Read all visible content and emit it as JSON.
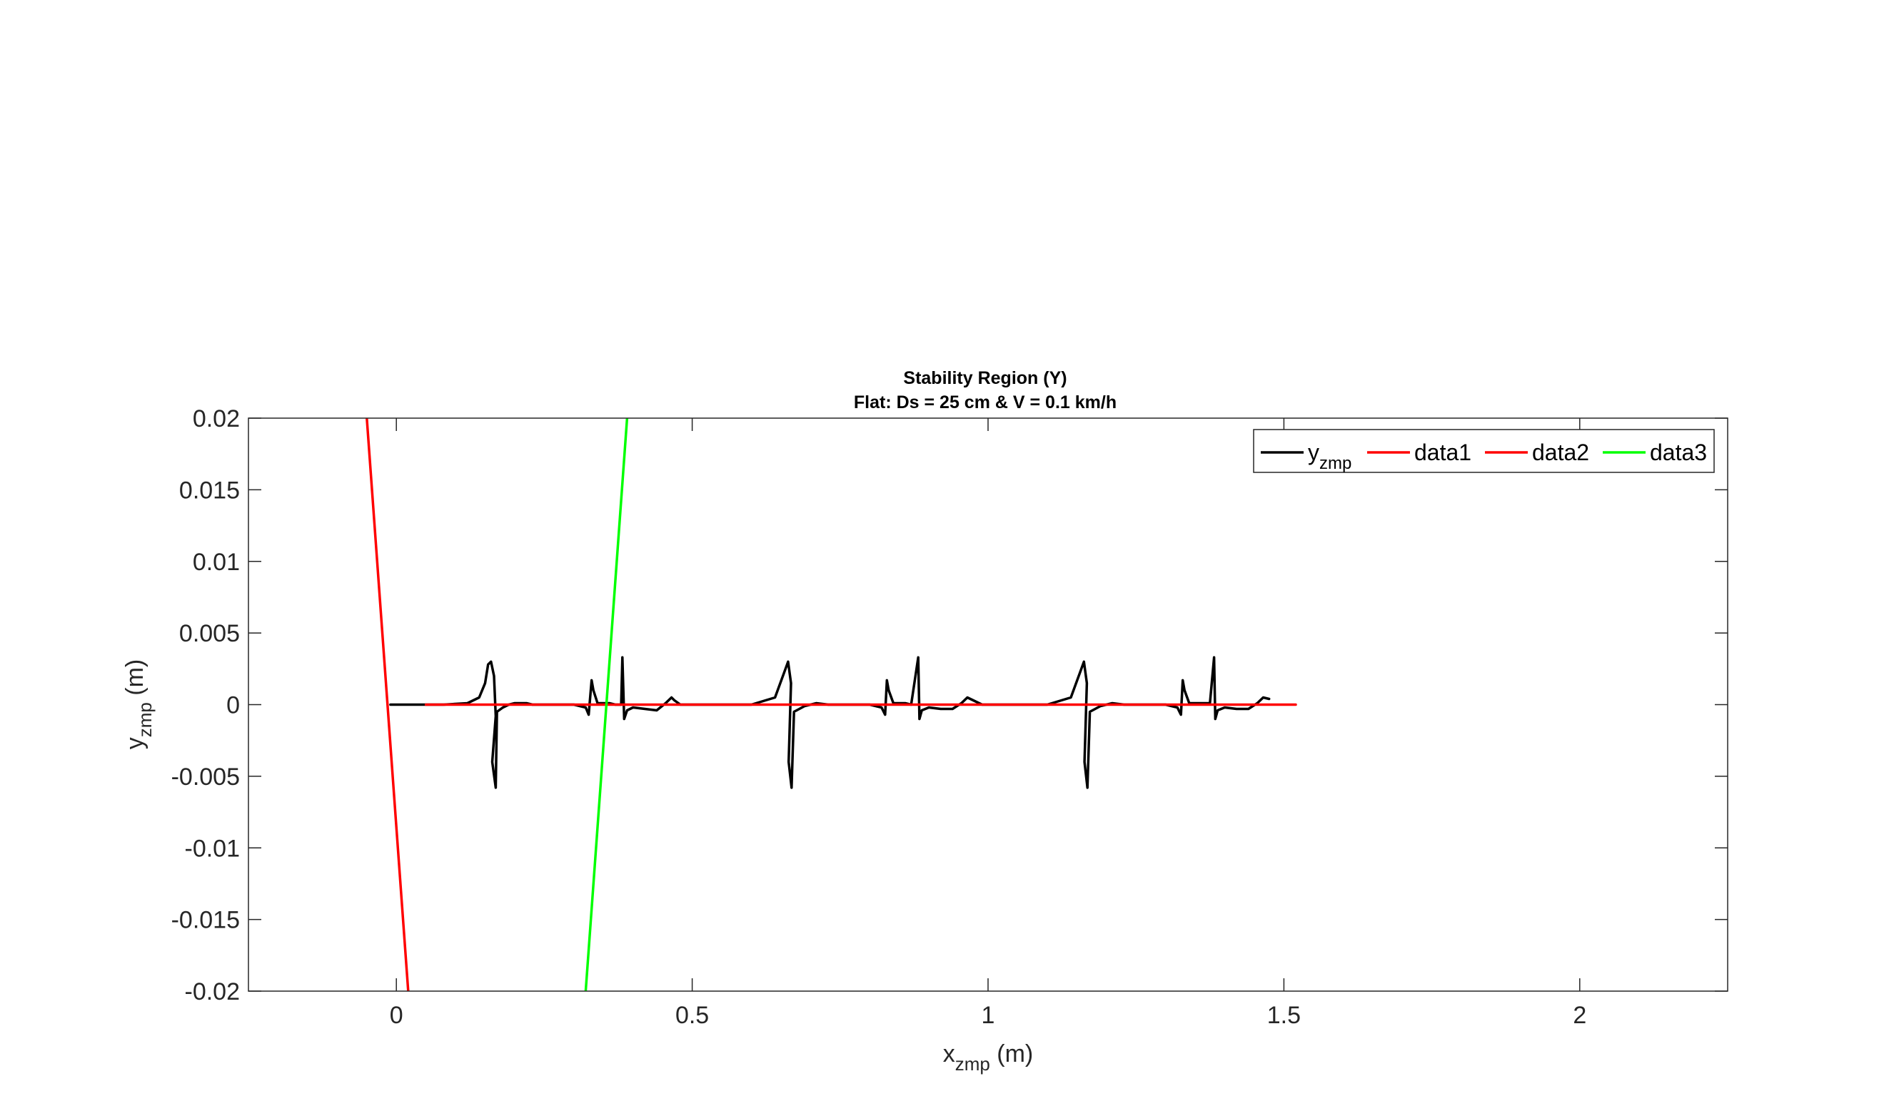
{
  "chart_data": {
    "type": "line",
    "title": "Stability Region (Y)",
    "subtitle": "Flat: Ds = 25 cm & V = 0.1 km/h",
    "xlabel": {
      "main": "x",
      "sub": "zmp",
      "unit": " (m)"
    },
    "ylabel": {
      "main": "y",
      "sub": "zmp",
      "unit": " (m)"
    },
    "xlim": [
      -0.25,
      2.25
    ],
    "ylim": [
      -0.02,
      0.02
    ],
    "xticks": [
      0,
      0.5,
      1,
      1.5,
      2
    ],
    "xtick_labels": [
      "0",
      "0.5",
      "1",
      "1.5",
      "2"
    ],
    "yticks": [
      0.02,
      0.015,
      0.01,
      0.005,
      0,
      -0.005,
      -0.01,
      -0.015,
      -0.02
    ],
    "ytick_labels": [
      "0.02",
      "0.015",
      "0.01",
      "0.005",
      "0",
      "-0.005",
      "-0.01",
      "-0.015",
      "-0.02"
    ],
    "grid": false,
    "legend_position": "top-right",
    "series": [
      {
        "name": "y",
        "name_sub": "zmp",
        "color": "#000000",
        "x": [
          -0.01,
          0.04,
          0.08,
          0.12,
          0.14,
          0.15,
          0.155,
          0.16,
          0.165,
          0.168,
          0.162,
          0.168,
          0.17,
          0.18,
          0.19,
          0.2,
          0.21,
          0.22,
          0.23,
          0.24,
          0.3,
          0.32,
          0.325,
          0.33,
          0.333,
          0.34,
          0.36,
          0.37,
          0.38,
          0.382,
          0.385,
          0.39,
          0.4,
          0.42,
          0.44,
          0.455,
          0.465,
          0.47,
          0.48,
          0.49,
          0.55,
          0.6,
          0.64,
          0.655,
          0.662,
          0.667,
          0.663,
          0.668,
          0.672,
          0.69,
          0.71,
          0.73,
          0.8,
          0.82,
          0.826,
          0.829,
          0.832,
          0.84,
          0.86,
          0.87,
          0.882,
          0.884,
          0.888,
          0.9,
          0.92,
          0.94,
          0.955,
          0.965,
          0.975,
          0.99,
          1.05,
          1.1,
          1.14,
          1.155,
          1.162,
          1.167,
          1.163,
          1.168,
          1.172,
          1.19,
          1.21,
          1.23,
          1.3,
          1.32,
          1.326,
          1.329,
          1.332,
          1.34,
          1.36,
          1.375,
          1.382,
          1.384,
          1.388,
          1.4,
          1.42,
          1.44,
          1.455,
          1.465,
          1.475
        ],
        "y": [
          0,
          0,
          0,
          0.0001,
          0.0005,
          0.0015,
          0.0028,
          0.003,
          0.002,
          -0.0008,
          -0.004,
          -0.0058,
          -0.0005,
          -0.0002,
          0,
          0.0001,
          0.0001,
          0.0001,
          0,
          0,
          0,
          -0.0002,
          -0.0007,
          0.0017,
          0.001,
          0.0001,
          0.0001,
          0,
          0,
          0.0033,
          -0.001,
          -0.0004,
          -0.0002,
          -0.0003,
          -0.0004,
          0.0001,
          0.0005,
          0.0003,
          0,
          0,
          0,
          0,
          0.0005,
          0.0022,
          0.003,
          0.0015,
          -0.004,
          -0.0058,
          -0.0005,
          -0.0001,
          0.0001,
          0,
          0,
          -0.0002,
          -0.0007,
          0.0017,
          0.001,
          0.0001,
          0.0001,
          0,
          0.0033,
          -0.001,
          -0.0004,
          -0.0002,
          -0.0003,
          -0.0003,
          0.0001,
          0.0005,
          0.0003,
          0,
          0,
          0,
          0.0005,
          0.0022,
          0.003,
          0.0015,
          -0.004,
          -0.0058,
          -0.0005,
          -0.0001,
          0.0001,
          0,
          0,
          -0.0002,
          -0.0007,
          0.0017,
          0.001,
          0.0001,
          0.0001,
          0.0001,
          0.0033,
          -0.001,
          -0.0004,
          -0.0002,
          -0.0003,
          -0.0003,
          0.0001,
          0.0005,
          0.0004
        ]
      },
      {
        "name": "data1",
        "color": "#ff0000",
        "x": [
          0.05,
          1.52
        ],
        "y": [
          0,
          0
        ]
      },
      {
        "name": "data2",
        "color": "#ff0000",
        "x": [
          -0.05,
          0.02
        ],
        "y": [
          0.02,
          -0.02
        ]
      },
      {
        "name": "data3",
        "color": "#00ff00",
        "x": [
          0.32,
          0.39
        ],
        "y": [
          -0.02,
          0.02
        ]
      }
    ]
  }
}
